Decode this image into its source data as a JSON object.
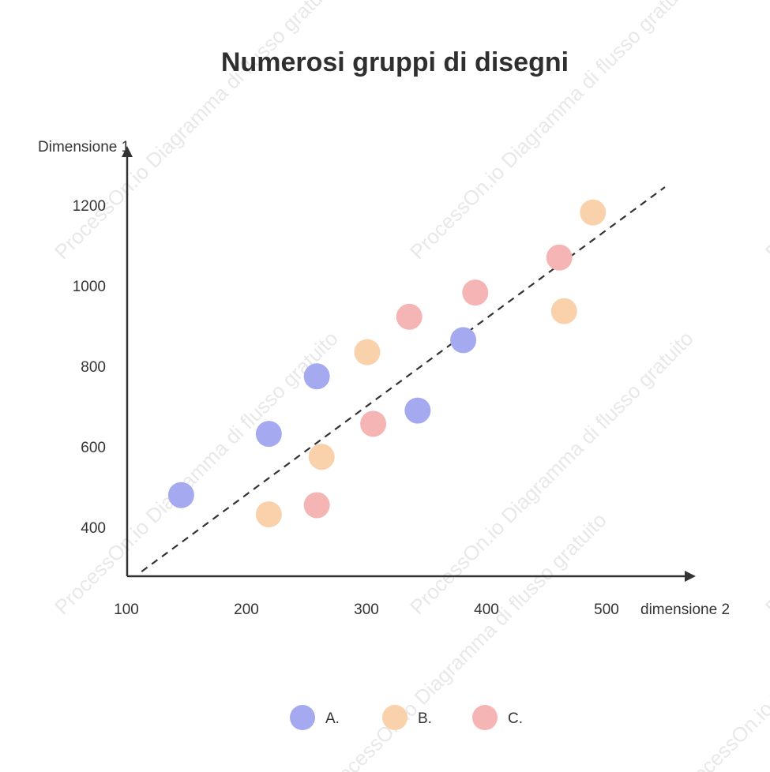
{
  "chart_data": {
    "type": "scatter",
    "title": "Numerosi gruppi di disegni",
    "xlabel": "dimensione 2",
    "ylabel": "Dimensione 1",
    "x_ticks": [
      100,
      200,
      300,
      400,
      500
    ],
    "y_ticks": [
      400,
      600,
      800,
      1000,
      1200
    ],
    "xlim": [
      100,
      540
    ],
    "ylim": [
      280,
      1290
    ],
    "grid": false,
    "legend_position": "bottom",
    "trend_line": {
      "style": "dashed",
      "color": "#333333",
      "from": [
        112,
        290
      ],
      "to": [
        548,
        1245
      ]
    },
    "series": [
      {
        "name": "A.",
        "color": "#a5aaf0",
        "points": [
          [
            145,
            480
          ],
          [
            218,
            632
          ],
          [
            258,
            775
          ],
          [
            342,
            690
          ],
          [
            380,
            865
          ]
        ]
      },
      {
        "name": "B.",
        "color": "#f9d2ac",
        "points": [
          [
            218,
            432
          ],
          [
            262,
            575
          ],
          [
            300,
            835
          ],
          [
            464,
            937
          ],
          [
            488,
            1182
          ]
        ]
      },
      {
        "name": "C.",
        "color": "#f5b5b5",
        "points": [
          [
            258,
            455
          ],
          [
            305,
            657
          ],
          [
            335,
            923
          ],
          [
            390,
            983
          ],
          [
            460,
            1070
          ]
        ]
      }
    ]
  },
  "watermark_text": "ProcessOn.io Diagramma di flusso gratuito"
}
